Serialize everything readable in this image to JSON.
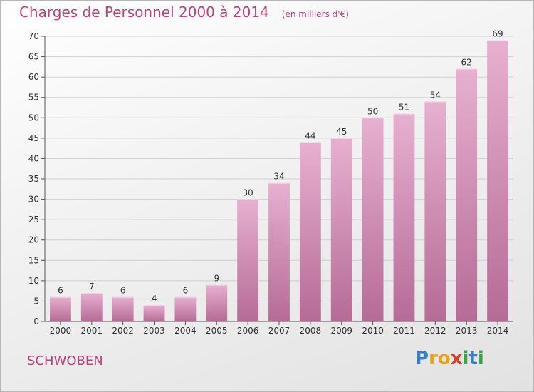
{
  "title": "Charges de Personnel 2000 à 2014",
  "subtitle": "(en milliers d'€)",
  "commune": "SCHWOBEN",
  "brand": {
    "letters": [
      "P",
      "r",
      "o",
      "x",
      "i",
      "t",
      "i"
    ],
    "colors": [
      "#3a7fc4",
      "#e8a21a",
      "#e8a21a",
      "#d0402a",
      "#3aa24a",
      "#3a7fc4",
      "#3aa24a"
    ]
  },
  "colors": {
    "title": "#c0407a",
    "bar_light": "#e7b0d0",
    "bar_dark": "#b56b96"
  },
  "chart_data": {
    "type": "bar",
    "title": "Charges de Personnel 2000 à 2014",
    "subtitle": "(en milliers d'€)",
    "categories": [
      "2000",
      "2001",
      "2002",
      "2003",
      "2004",
      "2005",
      "2006",
      "2007",
      "2008",
      "2009",
      "2010",
      "2011",
      "2012",
      "2013",
      "2014"
    ],
    "values": [
      6,
      7,
      6,
      4,
      6,
      9,
      30,
      34,
      44,
      45,
      50,
      51,
      54,
      62,
      69
    ],
    "ylim": [
      0,
      70
    ],
    "yticks": [
      0,
      5,
      10,
      15,
      20,
      25,
      30,
      35,
      40,
      45,
      50,
      55,
      60,
      65,
      70
    ],
    "grid": true,
    "data_labels": true,
    "xlabel": "",
    "ylabel": ""
  }
}
